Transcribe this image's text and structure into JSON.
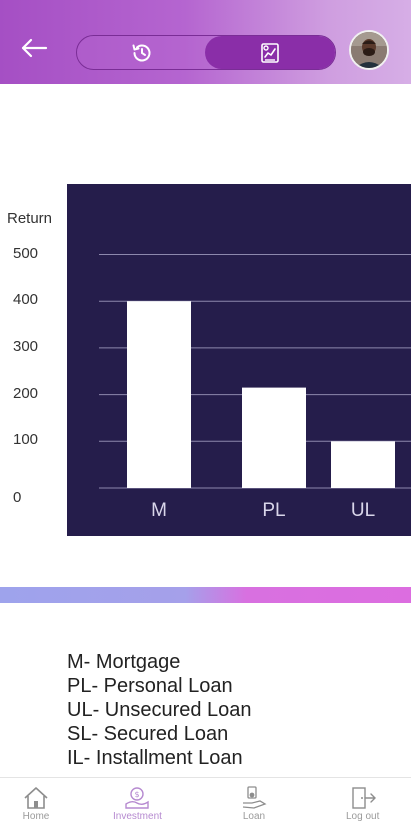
{
  "header": {
    "back_icon": "arrow-left-icon",
    "toggle": {
      "left_icon": "history-icon",
      "right_icon": "chart-report-icon",
      "active": "right"
    },
    "avatar_icon": "user-avatar"
  },
  "chart_data": {
    "type": "bar",
    "ylabel": "Return",
    "categories": [
      "M",
      "PL",
      "UL"
    ],
    "values": [
      400,
      215,
      100
    ],
    "yticks": [
      0,
      100,
      200,
      300,
      400,
      500
    ],
    "ylim": [
      0,
      500
    ],
    "grid": true,
    "colors": {
      "background": "#251d4b",
      "bar": "#ffffff",
      "grid": "#8d88ad",
      "tick_text": "#d9d6ea"
    }
  },
  "legend": {
    "items": [
      "M- Mortgage",
      "PL- Personal Loan",
      "UL- Unsecured Loan",
      "SL- Secured Loan",
      "IL- Installment Loan"
    ]
  },
  "bottom_nav": {
    "items": [
      {
        "label": "Home",
        "icon": "home-icon",
        "active": false
      },
      {
        "label": "Investment",
        "icon": "investment-icon",
        "active": true
      },
      {
        "label": "Loan",
        "icon": "loan-icon",
        "active": false
      },
      {
        "label": "Log out",
        "icon": "logout-icon",
        "active": false
      }
    ]
  }
}
